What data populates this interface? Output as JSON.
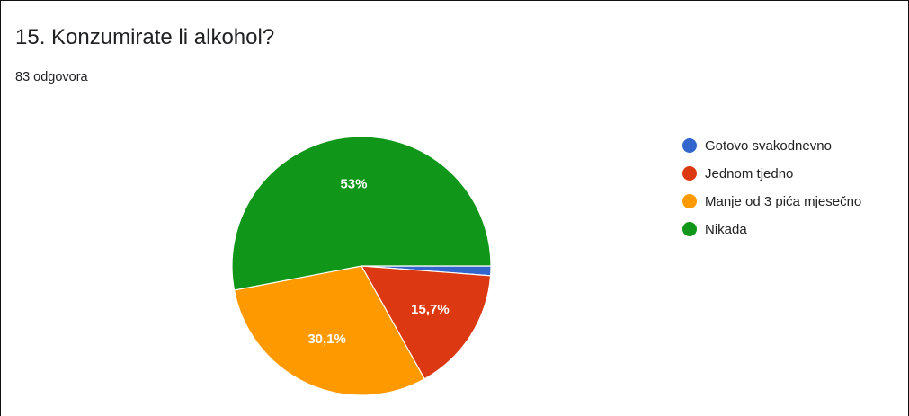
{
  "question": {
    "title": "15. Konzumirate li alkohol?",
    "response_count": "83 odgovora"
  },
  "chart_data": {
    "type": "pie",
    "title": "15. Konzumirate li alkohol?",
    "subtitle": "83 odgovora",
    "legend_position": "right",
    "categories": [
      "Gotovo svakodnevno",
      "Jednom tjedno",
      "Manje od 3 pića mjesečno",
      "Nikada"
    ],
    "values": [
      1.2,
      15.7,
      30.1,
      53.0
    ],
    "labels": [
      "",
      "15,7%",
      "30,1%",
      "53%"
    ],
    "colors": [
      "#3366cc",
      "#dc3912",
      "#ff9900",
      "#109618"
    ]
  }
}
